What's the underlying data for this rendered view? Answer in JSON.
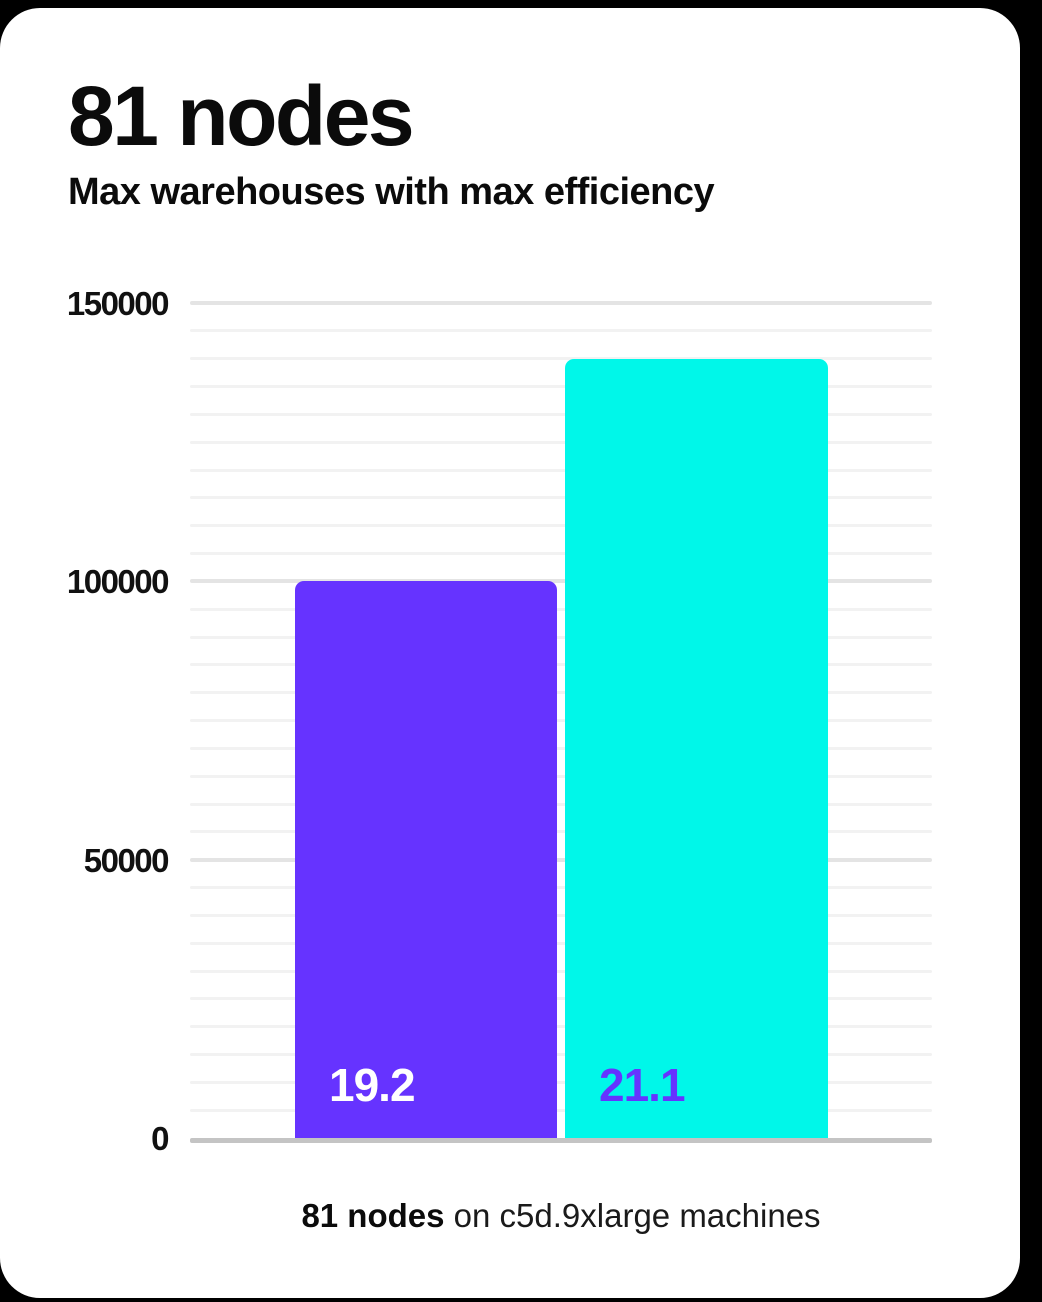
{
  "card": {
    "title": "81 nodes",
    "subtitle": "Max warehouses with max efficiency"
  },
  "caption": {
    "bold": "81 nodes",
    "rest": " on c5d.9xlarge machines"
  },
  "chart_data": {
    "type": "bar",
    "title": "81 nodes",
    "subtitle": "Max warehouses with max efficiency",
    "categories": [
      "19.2",
      "21.1"
    ],
    "values": [
      100000,
      140000
    ],
    "bar_labels": [
      "19.2",
      "21.1"
    ],
    "bar_colors": [
      "#6633ff",
      "#00f7e9"
    ],
    "bar_label_colors": [
      "#ffffff",
      "#6633ff"
    ],
    "xlabel": "",
    "ylabel": "",
    "ylim": [
      0,
      150000
    ],
    "yticks": [
      "0",
      "50000",
      "100000",
      "150000"
    ],
    "ytick_values": [
      0,
      50000,
      100000,
      150000
    ],
    "minor_grid_step": 5000,
    "grid": true,
    "legend_position": "none",
    "grid_minor_color": "#f2f2f2",
    "grid_major_color": "#e4e4e4",
    "axis_line_color": "#c4c4c4",
    "note": "81 nodes on c5d.9xlarge machines"
  }
}
